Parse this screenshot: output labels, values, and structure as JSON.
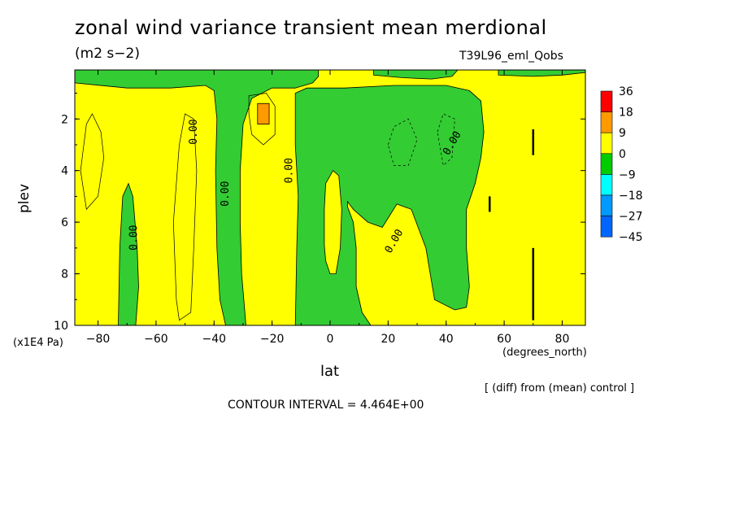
{
  "title": "zonal wind variance transient mean merdional",
  "units": "(m2 s−2)",
  "run_label": "T39L96_eml_Qobs",
  "y_axis_label": "plev",
  "y_axis_unit": "(x1E4 Pa)",
  "x_axis_label": "lat",
  "x_axis_unit": "(degrees_north)",
  "diff_note": "[ (diff) from (mean) control ]",
  "contour_interval": "CONTOUR INTERVAL = 4.464E+00",
  "contour_label": "0.00",
  "chart_data": {
    "type": "heatmap",
    "title": "zonal wind variance transient mean merdional",
    "subtitle": "(m2 s−2)",
    "xlabel": "lat",
    "ylabel": "plev",
    "xlim": [
      -88,
      88
    ],
    "ylim": [
      10,
      0.1
    ],
    "x_ticks": [
      -80,
      -60,
      -40,
      -20,
      0,
      20,
      40,
      60,
      80
    ],
    "x_tick_labels": [
      "−80",
      "−60",
      "−40",
      "−20",
      "0",
      "20",
      "40",
      "60",
      "80"
    ],
    "y_ticks": [
      2,
      4,
      6,
      8,
      10
    ],
    "y_tick_labels": [
      "2",
      "4",
      "6",
      "8",
      "10"
    ],
    "colorbar": {
      "levels": [
        "36",
        "18",
        "9",
        "0",
        "−9",
        "−18",
        "−27",
        "−45"
      ],
      "colors": [
        "#ff0000",
        "#ff9900",
        "#ffff00",
        "#00cc00",
        "#00ffff",
        "#0099ff",
        "#0066ff"
      ]
    },
    "fill_colors": {
      "positive": "#ffff00",
      "negative": "#33cc33",
      "high": "#ff9900"
    },
    "grid": false
  }
}
